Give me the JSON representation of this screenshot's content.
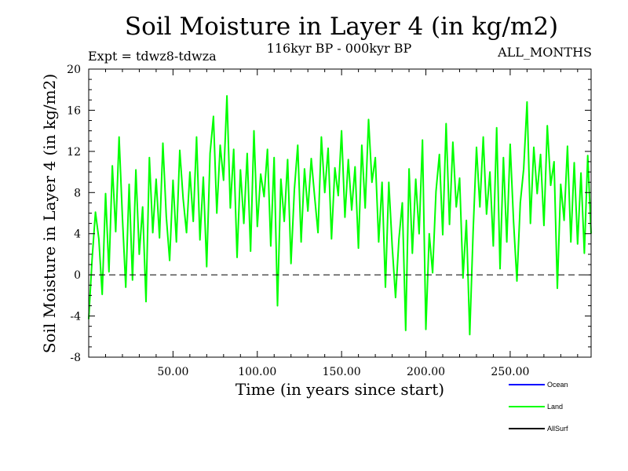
{
  "chart_data": {
    "type": "line",
    "title": "Soil Moisture in Layer 4 (in kg/m2)",
    "subtitle": "116kyr BP - 000kyr BP",
    "experiment": "Expt = tdwz8-tdwza",
    "months_label": "ALL_MONTHS",
    "xlabel": "Time (in years since start)",
    "ylabel": "Soil Moisture in Layer 4 (in kg/m2)",
    "xlim": [
      0,
      298
    ],
    "ylim": [
      -8,
      20
    ],
    "xticks": [
      50,
      100,
      150,
      200,
      250
    ],
    "xtick_labels": [
      "50.00",
      "100.00",
      "150.00",
      "200.00",
      "250.00"
    ],
    "yticks": [
      -8,
      -4,
      0,
      4,
      8,
      12,
      16,
      20
    ],
    "ytick_labels": [
      "-8",
      "-4",
      "0",
      "4",
      "8",
      "12",
      "16",
      "20"
    ],
    "zero_line": 0,
    "colors": {
      "ocean": "#0000ff",
      "land": "#00ff00",
      "allsurf": "#000000"
    },
    "legend": [
      "Ocean",
      "Land",
      "AllSurf"
    ],
    "legend_position": "bottom-right",
    "series": [
      {
        "name": "Land",
        "color": "#00ff00",
        "x": [
          0,
          2,
          4,
          6,
          8,
          10,
          12,
          14,
          16,
          18,
          20,
          22,
          24,
          26,
          28,
          30,
          32,
          34,
          36,
          38,
          40,
          42,
          44,
          46,
          48,
          50,
          52,
          54,
          56,
          58,
          60,
          62,
          64,
          66,
          68,
          70,
          72,
          74,
          76,
          78,
          80,
          82,
          84,
          86,
          88,
          90,
          92,
          94,
          96,
          98,
          100,
          102,
          104,
          106,
          108,
          110,
          112,
          114,
          116,
          118,
          120,
          122,
          124,
          126,
          128,
          130,
          132,
          134,
          136,
          138,
          140,
          142,
          144,
          146,
          148,
          150,
          152,
          154,
          156,
          158,
          160,
          162,
          164,
          166,
          168,
          170,
          172,
          174,
          176,
          178,
          180,
          182,
          184,
          186,
          188,
          190,
          192,
          194,
          196,
          198,
          200,
          202,
          204,
          206,
          208,
          210,
          212,
          214,
          216,
          218,
          220,
          222,
          224,
          226,
          228,
          230,
          232,
          234,
          236,
          238,
          240,
          242,
          244,
          246,
          248,
          250,
          252,
          254,
          256,
          258,
          260,
          262,
          264,
          266,
          268,
          270,
          272,
          274,
          276,
          278,
          280,
          282,
          284,
          286,
          288,
          290,
          292,
          294,
          296,
          298
        ],
        "values": [
          -4.3,
          1.5,
          6.1,
          3.5,
          -1.9,
          7.9,
          0.3,
          10.6,
          4.2,
          13.4,
          5.5,
          -1.2,
          8.8,
          -0.5,
          10.2,
          2.0,
          6.6,
          -2.6,
          11.4,
          4.1,
          9.3,
          3.6,
          12.8,
          5.7,
          1.4,
          9.2,
          3.2,
          12.1,
          7.4,
          4.1,
          10.0,
          5.2,
          13.4,
          3.4,
          9.5,
          0.8,
          11.8,
          15.4,
          6.0,
          12.6,
          9.2,
          17.4,
          6.5,
          12.2,
          1.7,
          10.2,
          5.0,
          11.8,
          2.3,
          14.0,
          4.7,
          9.8,
          7.6,
          12.2,
          2.8,
          11.4,
          -3.0,
          9.3,
          5.2,
          11.2,
          1.1,
          8.3,
          12.6,
          3.2,
          10.3,
          6.2,
          11.3,
          7.6,
          4.1,
          13.4,
          8.0,
          12.3,
          3.5,
          10.4,
          7.7,
          14.0,
          5.6,
          11.2,
          6.3,
          10.5,
          2.6,
          12.6,
          6.5,
          15.1,
          9.0,
          11.4,
          3.2,
          9.0,
          -1.2,
          9.0,
          2.8,
          -2.2,
          3.5,
          7.0,
          -5.4,
          10.3,
          2.1,
          9.3,
          4.0,
          13.1,
          -5.3,
          4.0,
          0.2,
          8.1,
          11.7,
          3.9,
          14.7,
          4.9,
          12.9,
          6.6,
          9.4,
          -0.3,
          5.3,
          -5.8,
          4.2,
          12.4,
          6.6,
          13.4,
          5.9,
          10.0,
          2.8,
          14.3,
          0.6,
          11.4,
          3.2,
          12.7,
          5.2,
          -0.6,
          7.0,
          10.3,
          16.8,
          5.0,
          12.4,
          7.9,
          11.7,
          4.8,
          14.5,
          8.7,
          11.0,
          -1.3,
          8.8,
          5.3,
          12.5,
          3.2,
          10.9,
          3.0,
          9.9,
          2.1,
          11.6,
          4.0
        ]
      }
    ]
  }
}
